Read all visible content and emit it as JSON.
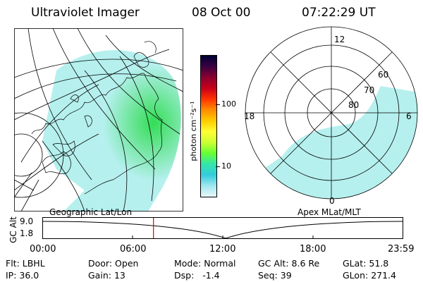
{
  "header": {
    "instrument": "Ultraviolet Imager",
    "date": "08 Oct 00",
    "time": "07:22:29 UT"
  },
  "colorbar": {
    "units": "photon cm⁻²s⁻¹",
    "ticks": [
      "100",
      "10"
    ],
    "colors": [
      "#000033",
      "#3a0040",
      "#8a0030",
      "#c8001a",
      "#ff3300",
      "#ff8c00",
      "#ffcc00",
      "#ffff33",
      "#ccff33",
      "#66ff33",
      "#33e6aa",
      "#33ccdd",
      "#a0e8f0",
      "#e8f8fa"
    ]
  },
  "geo_map": {
    "caption": "Geographic Lat/Lon",
    "fill_color": "#b5f0ee",
    "glow_color": "#33dd55"
  },
  "polar_map": {
    "caption": "Apex MLat/MLT",
    "mlt_labels": {
      "top": "12",
      "left": "18",
      "right": "6",
      "bottom": "0"
    },
    "lat_labels": [
      "60",
      "70",
      "80"
    ]
  },
  "timeline": {
    "axis_label": "GC Alt",
    "y_ticks": [
      "9.0",
      "1.8"
    ],
    "x_ticks": [
      "00:00",
      "06:00",
      "12:00",
      "18:00",
      "23:59"
    ],
    "current_time_fraction": 0.308,
    "marker_color": "#e00000"
  },
  "footer": {
    "row1": [
      {
        "label": "Flt:",
        "value": "LBHL"
      },
      {
        "label": "Door:",
        "value": "Open"
      },
      {
        "label": "Mode:",
        "value": "Normal"
      },
      {
        "label": "GC Alt:",
        "value": "8.6 Re"
      },
      {
        "label": "GLat:",
        "value": "51.8"
      }
    ],
    "row2": [
      {
        "label": "IP:",
        "value": "36.0"
      },
      {
        "label": "Gain:",
        "value": "13"
      },
      {
        "label": "Dsp:",
        "value": "-1.4"
      },
      {
        "label": "Seq:",
        "value": "39"
      },
      {
        "label": "GLon:",
        "value": "271.4"
      }
    ]
  }
}
